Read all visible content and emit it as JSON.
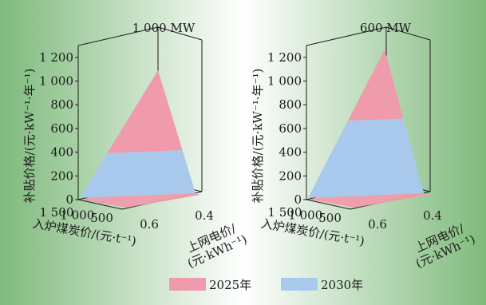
{
  "chart_data": [
    {
      "type": "surface-3d",
      "title": "1 000 MW",
      "zlabel": "补贴价格/(元·kW⁻¹·年⁻¹)",
      "z_ticks": [
        "0",
        "200",
        "400",
        "600",
        "800",
        "1 000",
        "1 200"
      ],
      "zlim": [
        0,
        1300
      ],
      "coal_label": "入炉煤炭价/(元·t⁻¹)",
      "coal_ticks": [
        "1 500",
        "1 000",
        "500"
      ],
      "grid_label": "上网电价/ (元·kWh⁻¹)",
      "grid_label_lines": [
        "上网电价/",
        "(元·kWh⁻¹)"
      ],
      "grid_ticks": [
        "0.6",
        "0.4"
      ],
      "series": [
        {
          "name": "2025年",
          "color": "#f09bac",
          "z_range": [
            0,
            1200
          ],
          "fill_from": 0.0,
          "fill_to": 0.65
        },
        {
          "name": "2030年",
          "color": "#a9c9ec",
          "z_range": [
            0,
            540
          ],
          "fill_from": 0.65,
          "fill_to": 1.0
        }
      ]
    },
    {
      "type": "surface-3d",
      "title": "600 MW",
      "zlabel": "补贴价格/(元·kW⁻¹·年⁻¹)",
      "z_ticks": [
        "0",
        "200",
        "400",
        "600",
        "800",
        "1 000",
        "1 200"
      ],
      "zlim": [
        0,
        1300
      ],
      "coal_label": "入炉煤炭价/(元·t⁻¹)",
      "coal_ticks": [
        "1 500",
        "1 000",
        "500"
      ],
      "grid_label": "上网电价/ (元·kWh⁻¹)",
      "grid_label_lines": [
        "上网电价/",
        "(元·kWh⁻¹)"
      ],
      "grid_ticks": [
        "0.6",
        "0.4"
      ],
      "series": [
        {
          "name": "2025年",
          "color": "#f09bac",
          "z_range": [
            0,
            1350
          ],
          "fill_from": 0.0,
          "fill_to": 0.48
        },
        {
          "name": "2030年",
          "color": "#a9c9ec",
          "z_range": [
            0,
            640
          ],
          "fill_from": 0.48,
          "fill_to": 1.0
        }
      ]
    }
  ],
  "legend": [
    {
      "label": "2025年",
      "color": "#f09bac"
    },
    {
      "label": "2030年",
      "color": "#a9c9ec"
    }
  ],
  "colors": {
    "background_center": "#ffffff",
    "background_edge": "#7cb87a"
  }
}
